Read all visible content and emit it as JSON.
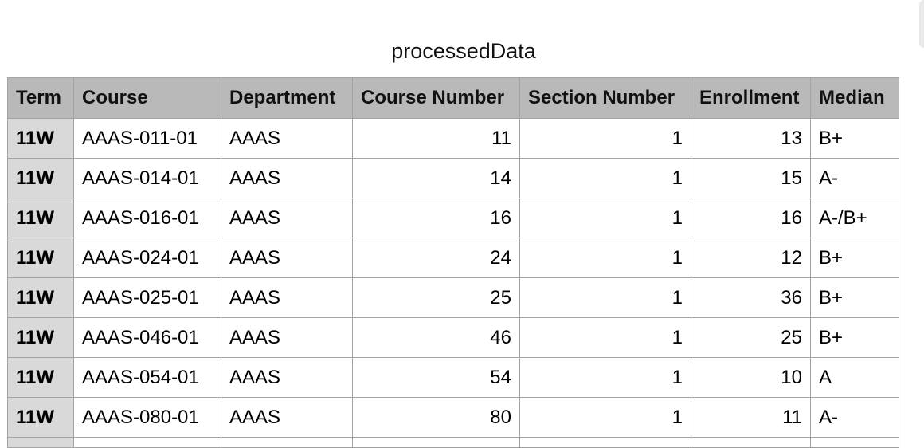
{
  "sheet": {
    "title": "processedData"
  },
  "table": {
    "columns": [
      "Term",
      "Course",
      "Department",
      "Course Number",
      "Section Number",
      "Enrollment",
      "Median"
    ],
    "rows": [
      [
        "11W",
        "AAAS-011-01",
        "AAAS",
        "11",
        "1",
        "13",
        "B+"
      ],
      [
        "11W",
        "AAAS-014-01",
        "AAAS",
        "14",
        "1",
        "15",
        "A-"
      ],
      [
        "11W",
        "AAAS-016-01",
        "AAAS",
        "16",
        "1",
        "16",
        "A-/B+"
      ],
      [
        "11W",
        "AAAS-024-01",
        "AAAS",
        "24",
        "1",
        "12",
        "B+"
      ],
      [
        "11W",
        "AAAS-025-01",
        "AAAS",
        "25",
        "1",
        "36",
        "B+"
      ],
      [
        "11W",
        "AAAS-046-01",
        "AAAS",
        "46",
        "1",
        "25",
        "B+"
      ],
      [
        "11W",
        "AAAS-054-01",
        "AAAS",
        "54",
        "1",
        "10",
        "A"
      ],
      [
        "11W",
        "AAAS-080-01",
        "AAAS",
        "80",
        "1",
        "11",
        "A-"
      ]
    ]
  },
  "colors": {
    "header_bg": "#b9b9b9",
    "term_column_bg": "#d9d9d9",
    "grid_line": "#a3a3a3"
  }
}
